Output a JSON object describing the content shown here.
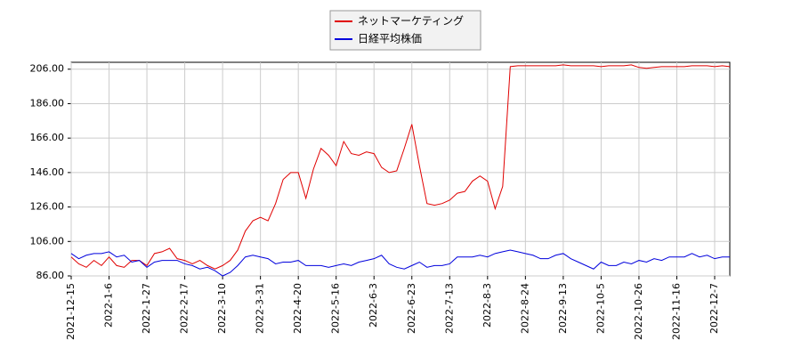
{
  "chart_data": {
    "type": "line",
    "x": [
      0,
      3,
      6,
      9,
      12,
      15,
      18,
      21,
      24,
      27,
      30,
      33,
      36,
      39,
      42,
      45,
      48,
      51,
      54,
      57,
      60,
      63,
      66,
      69,
      72,
      75,
      78,
      81,
      84,
      87,
      90,
      93,
      96,
      99,
      102,
      105,
      108,
      111,
      114,
      117,
      120,
      123,
      126,
      129,
      132,
      135,
      138,
      141,
      144,
      147,
      150,
      153,
      156,
      159,
      162,
      165,
      168,
      171,
      174,
      177,
      180,
      183,
      186,
      189,
      192,
      195,
      198,
      201,
      204,
      207,
      210,
      213,
      216,
      219,
      222,
      225,
      228,
      231,
      234,
      237,
      240,
      243,
      246,
      249,
      252,
      255,
      258,
      261
    ],
    "xlim": [
      0,
      261
    ],
    "xticks": [
      {
        "value": 0,
        "label": "2021-12-15"
      },
      {
        "value": 15,
        "label": "2022-1-6"
      },
      {
        "value": 30,
        "label": "2022-1-27"
      },
      {
        "value": 45,
        "label": "2022-2-17"
      },
      {
        "value": 60,
        "label": "2022-3-10"
      },
      {
        "value": 75,
        "label": "2022-3-31"
      },
      {
        "value": 90,
        "label": "2022-4-20"
      },
      {
        "value": 105,
        "label": "2022-5-16"
      },
      {
        "value": 120,
        "label": "2022-6-3"
      },
      {
        "value": 135,
        "label": "2022-6-23"
      },
      {
        "value": 150,
        "label": "2022-7-13"
      },
      {
        "value": 165,
        "label": "2022-8-3"
      },
      {
        "value": 180,
        "label": "2022-8-24"
      },
      {
        "value": 195,
        "label": "2022-9-13"
      },
      {
        "value": 210,
        "label": "2022-10-5"
      },
      {
        "value": 225,
        "label": "2022-10-26"
      },
      {
        "value": 240,
        "label": "2022-11-16"
      },
      {
        "value": 255,
        "label": "2022-12-7"
      }
    ],
    "ylim": [
      86,
      210
    ],
    "yticks": [
      {
        "value": 86,
        "label": "86.00"
      },
      {
        "value": 106,
        "label": "106.00"
      },
      {
        "value": 126,
        "label": "126.00"
      },
      {
        "value": 146,
        "label": "146.00"
      },
      {
        "value": 166,
        "label": "166.00"
      },
      {
        "value": 186,
        "label": "186.00"
      },
      {
        "value": 206,
        "label": "206.00"
      }
    ],
    "grid": true,
    "legend": "top",
    "series": [
      {
        "name": "ネットマーケティング",
        "color": "#e00000",
        "values": [
          97,
          93,
          91,
          95,
          92,
          97,
          92,
          91,
          95,
          95,
          92,
          99,
          100,
          102,
          96,
          95,
          93,
          95,
          92,
          90,
          92,
          95,
          101,
          112,
          118,
          120,
          118,
          128,
          142,
          146,
          146,
          131,
          148,
          160,
          156,
          150,
          164,
          157,
          156,
          158,
          157,
          149,
          146,
          147,
          160,
          174,
          150,
          128,
          127,
          128,
          130,
          134,
          135,
          141,
          144,
          141,
          125,
          138,
          207.5,
          208,
          208,
          208,
          208,
          208,
          208,
          208.5,
          208,
          208,
          208,
          208,
          207.5,
          208,
          208,
          208,
          208.5,
          207,
          206.5,
          207,
          207.5,
          207.5,
          207.5,
          207.5,
          208,
          208,
          208,
          207.5,
          208,
          207.5
        ]
      },
      {
        "name": "日経平均株価",
        "color": "#0000dd",
        "values": [
          99,
          96,
          98,
          99,
          99,
          100,
          97,
          98,
          94,
          95,
          91,
          94,
          95,
          95,
          95,
          93,
          92,
          90,
          91,
          89,
          86,
          88,
          92,
          97,
          98,
          97,
          96,
          93,
          94,
          94,
          95,
          92,
          92,
          92,
          91,
          92,
          93,
          92,
          94,
          95,
          96,
          98,
          93,
          91,
          90,
          92,
          94,
          91,
          92,
          92,
          93,
          97,
          97,
          97,
          98,
          97,
          99,
          100,
          101,
          100,
          99,
          98,
          96,
          96,
          98,
          99,
          96,
          94,
          92,
          90,
          94,
          92,
          92,
          94,
          93,
          95,
          94,
          96,
          95,
          97,
          97,
          97,
          99,
          97,
          98,
          96,
          97,
          97
        ]
      }
    ]
  }
}
